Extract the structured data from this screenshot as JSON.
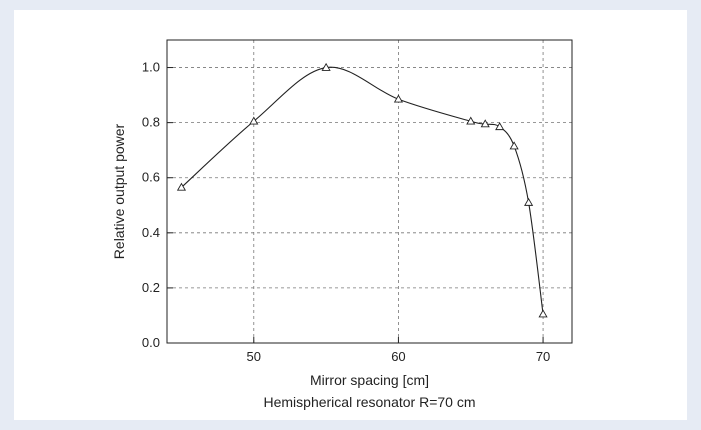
{
  "chart_data": {
    "type": "line",
    "xlabel": "Mirror spacing [cm]",
    "ylabel": "Relative output power",
    "caption": "Hemispherical resonator R=70 cm",
    "xlim": [
      44,
      72
    ],
    "ylim": [
      0.0,
      1.1
    ],
    "xticks": [
      50,
      60,
      70
    ],
    "yticks": [
      0.0,
      0.2,
      0.4,
      0.6,
      0.8,
      1.0
    ],
    "xtick_labels": [
      "50",
      "60",
      "70"
    ],
    "ytick_labels": [
      "0.0",
      "0.2",
      "0.4",
      "0.6",
      "0.8",
      "1.0"
    ],
    "grid": true,
    "marker": "triangle",
    "series": [
      {
        "x": [
          45,
          50,
          55,
          60,
          65,
          66,
          67,
          68,
          69,
          70
        ],
        "values": [
          0.565,
          0.805,
          1.0,
          0.885,
          0.805,
          0.795,
          0.785,
          0.715,
          0.51,
          0.105
        ]
      }
    ]
  }
}
